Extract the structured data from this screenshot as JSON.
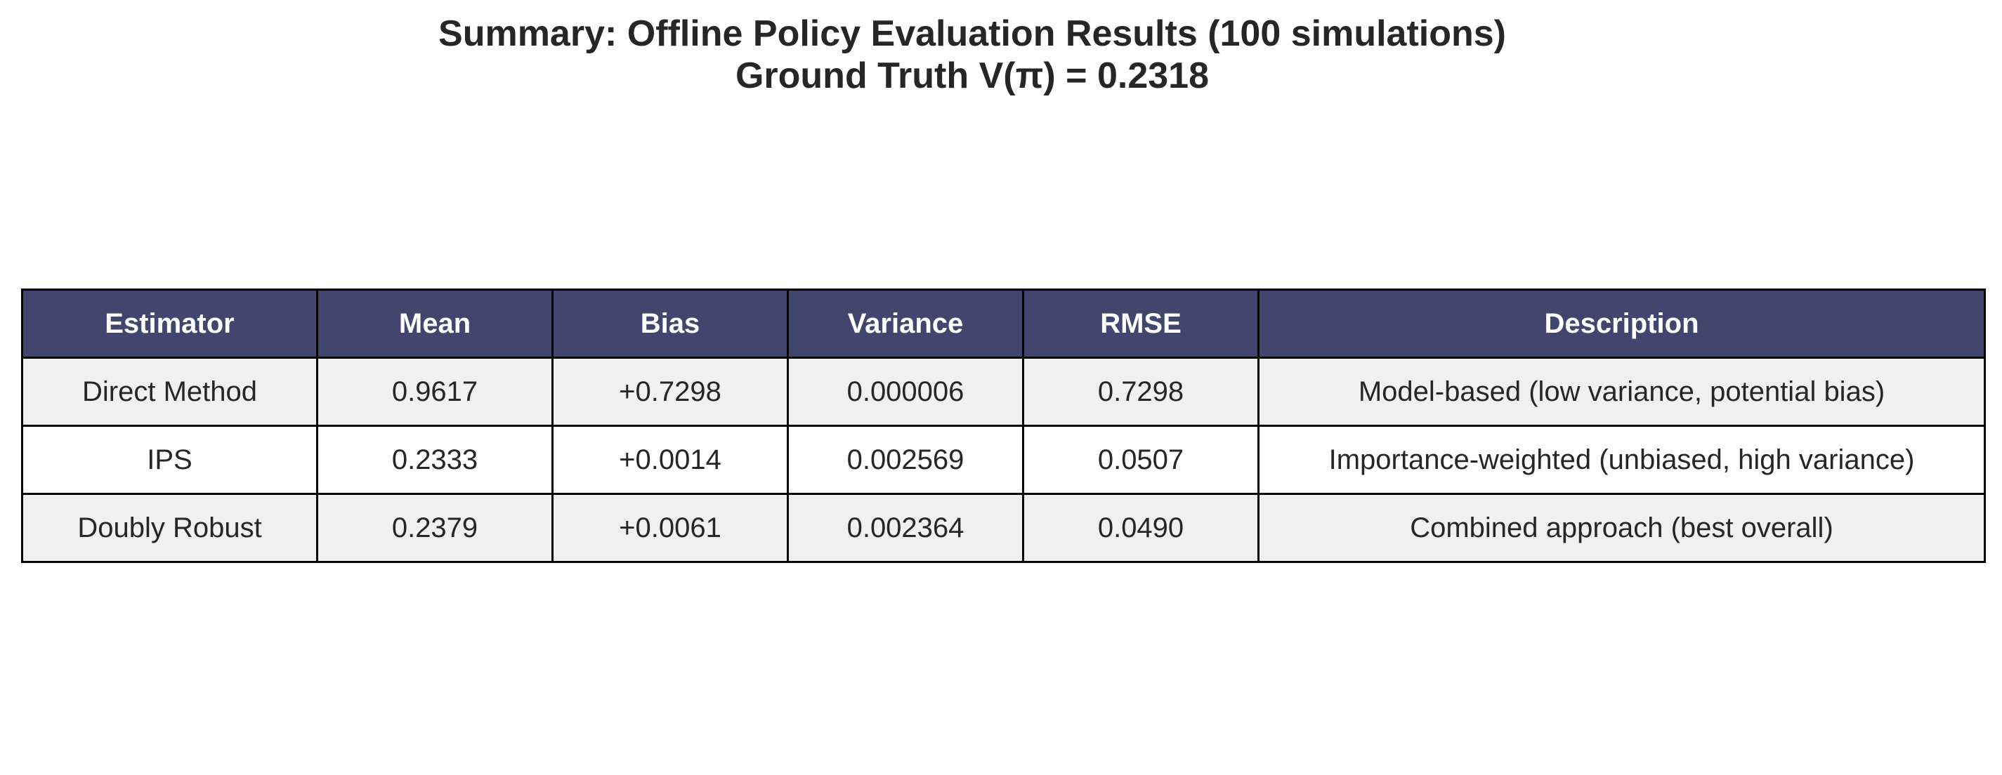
{
  "title": {
    "line1": "Summary: Offline Policy Evaluation Results (100 simulations)",
    "line2": "Ground Truth V(π) = 0.2318"
  },
  "colors": {
    "header_bg": "#40466e",
    "header_text": "#ffffff",
    "row_shaded": "#f0f0f0",
    "row_plain": "#ffffff",
    "border": "#000000"
  },
  "chart_data": {
    "type": "table",
    "title": "Summary: Offline Policy Evaluation Results (100 simulations)\nGround Truth V(π) = 0.2318",
    "columns": [
      "Estimator",
      "Mean",
      "Bias",
      "Variance",
      "RMSE",
      "Description"
    ],
    "rows": [
      [
        "Direct Method",
        "0.9617",
        "+0.7298",
        "0.000006",
        "0.7298",
        "Model-based (low variance, potential bias)"
      ],
      [
        "IPS",
        "0.2333",
        "+0.0014",
        "0.002569",
        "0.0507",
        "Importance-weighted (unbiased, high variance)"
      ],
      [
        "Doubly Robust",
        "0.2379",
        "+0.0061",
        "0.002364",
        "0.0490",
        "Combined approach (best overall)"
      ]
    ]
  }
}
